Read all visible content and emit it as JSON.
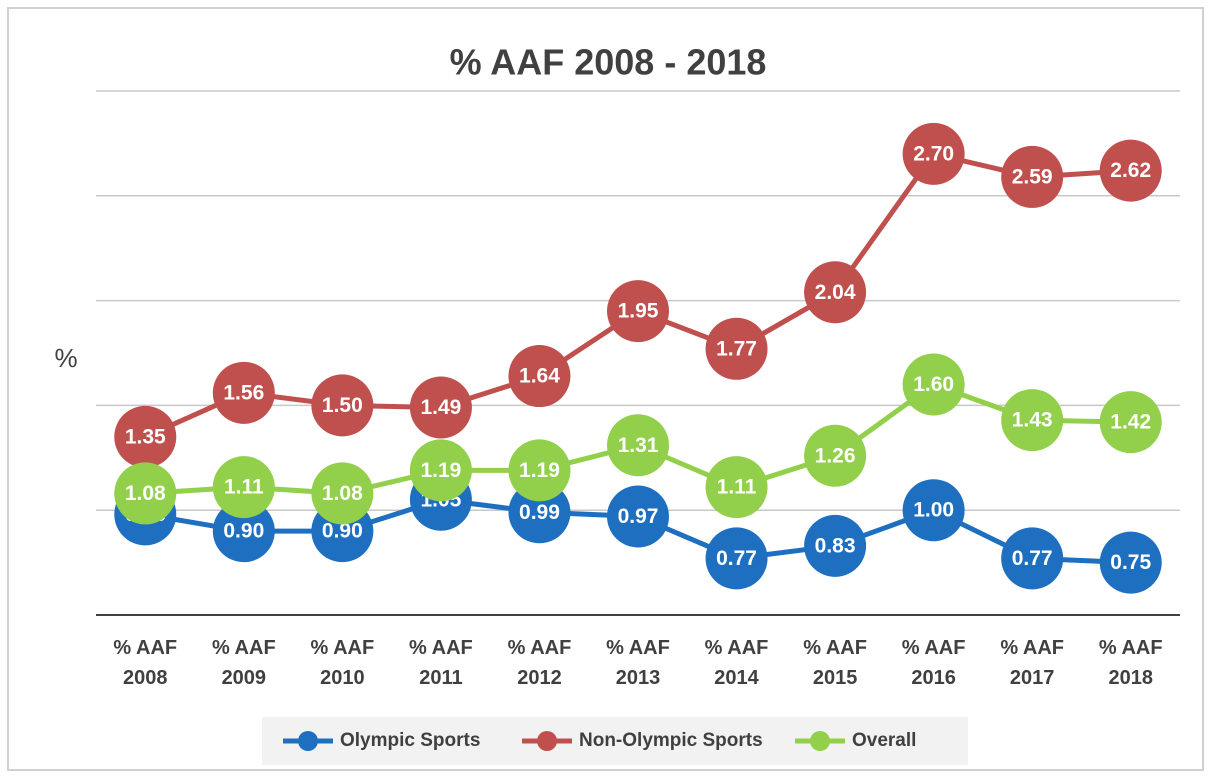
{
  "chart_data": {
    "type": "line",
    "title": "% AAF 2008 - 2018",
    "y_label": "%",
    "categories": [
      "% AAF 2008",
      "% AAF 2009",
      "% AAF 2010",
      "% AAF 2011",
      "% AAF 2012",
      "% AAF 2013",
      "% AAF 2014",
      "% AAF 2015",
      "% AAF 2016",
      "% AAF 2017",
      "% AAF 2018"
    ],
    "series": [
      {
        "name": "Olympic Sports",
        "color": "#1f6fc1",
        "values": [
          0.98,
          0.9,
          0.9,
          1.05,
          0.99,
          0.97,
          0.77,
          0.83,
          1.0,
          0.77,
          0.75
        ],
        "value_labels": [
          "0.98",
          "0.90",
          "0.90",
          "1.05",
          "0.99",
          "0.97",
          "0.77",
          "0.83",
          "1.00",
          "0.77",
          "0.75"
        ]
      },
      {
        "name": "Non-Olympic Sports",
        "color": "#c0504d",
        "values": [
          1.35,
          1.56,
          1.5,
          1.49,
          1.64,
          1.95,
          1.77,
          2.04,
          2.7,
          2.59,
          2.62
        ],
        "value_labels": [
          "1.35",
          "1.56",
          "1.50",
          "1.49",
          "1.64",
          "1.95",
          "1.77",
          "2.04",
          "2.70",
          "2.59",
          "2.62"
        ]
      },
      {
        "name": "Overall",
        "color": "#92cf4a",
        "values": [
          1.08,
          1.11,
          1.08,
          1.19,
          1.19,
          1.31,
          1.11,
          1.26,
          1.6,
          1.43,
          1.42
        ],
        "value_labels": [
          "1.08",
          "1.11",
          "1.08",
          "1.19",
          "1.19",
          "1.31",
          "1.11",
          "1.26",
          "1.60",
          "1.43",
          "1.42"
        ]
      }
    ],
    "ylim": [
      0.5,
      3.0
    ],
    "yticks": [
      0.5,
      1,
      1.5,
      2,
      2.5,
      3
    ],
    "grid": true,
    "legend": "bottom"
  }
}
